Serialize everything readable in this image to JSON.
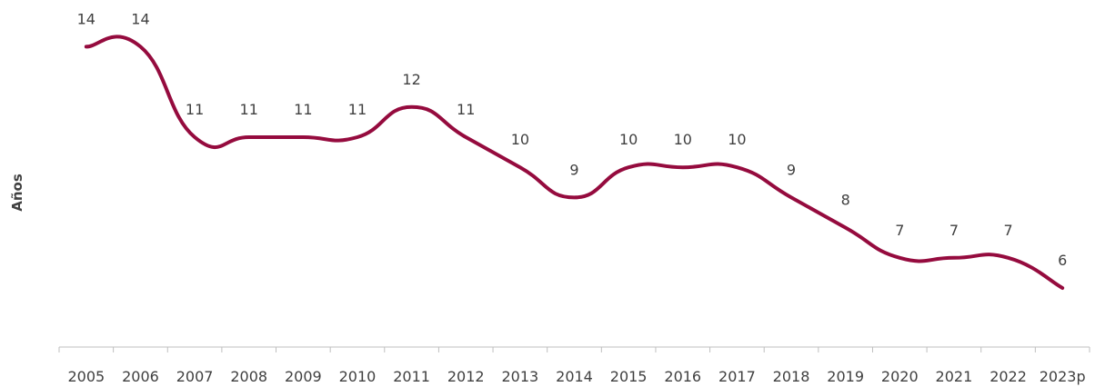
{
  "chart_data": {
    "type": "line",
    "categories": [
      "2005",
      "2006",
      "2007",
      "2008",
      "2009",
      "2010",
      "2011",
      "2012",
      "2013",
      "2014",
      "2015",
      "2016",
      "2017",
      "2018",
      "2019",
      "2020",
      "2021",
      "2022",
      "2023p"
    ],
    "series": [
      {
        "values": [
          14,
          14,
          11,
          11,
          11,
          11,
          12,
          11,
          10,
          9,
          10,
          10,
          10,
          9,
          8,
          7,
          7,
          7,
          6
        ],
        "labels": [
          "14",
          "14",
          "11",
          "11",
          "11",
          "11",
          "12",
          "11",
          "10",
          "9",
          "10",
          "10",
          "10",
          "9",
          "8",
          "7",
          "7",
          "7",
          "6"
        ],
        "color": "#950b3e"
      }
    ],
    "xlabel": "",
    "ylabel": "Años",
    "legend": "none",
    "grid": false,
    "smooth": true,
    "axis_color": "#bfbfbf"
  }
}
